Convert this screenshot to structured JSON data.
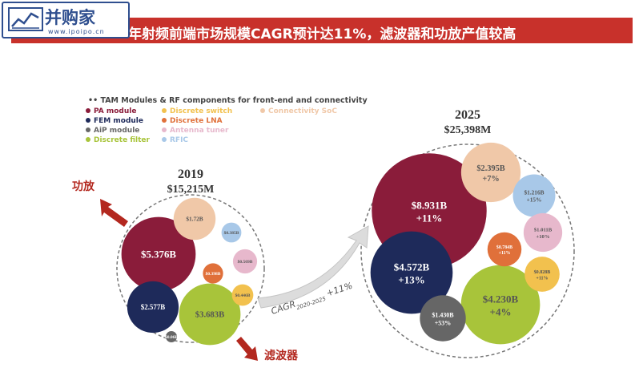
{
  "banner": {
    "title": "年射频前端市场规模CAGR预计达11%，滤波器和功放产值较高",
    "logo_name": "并购家",
    "logo_url": "www.ipoipo.cn",
    "colors": {
      "banner": "#c8312b",
      "logo": "#2f4f8f"
    }
  },
  "legend": {
    "heading": "TAM Modules & RF components for front-end and connectivity",
    "items": [
      {
        "label": "PA module",
        "color": "#8a1c3a"
      },
      {
        "label": "FEM module",
        "color": "#1e2a5a"
      },
      {
        "label": "AiP module",
        "color": "#666666"
      },
      {
        "label": "Discrete filter",
        "color": "#a8c43a"
      },
      {
        "label": "Discrete switch",
        "color": "#f2c14e"
      },
      {
        "label": "Discrete LNA",
        "color": "#e0703a"
      },
      {
        "label": "Antenna tuner",
        "color": "#e7b8cc"
      },
      {
        "label": "RFIC",
        "color": "#a8c8e8"
      },
      {
        "label": "Connectivity SoC",
        "color": "#f0c8a8"
      }
    ]
  },
  "chart_data": {
    "type": "bubble",
    "units": "USD",
    "growth_label": "CAGR",
    "growth_period": "2020-2025",
    "growth_value": "+11%",
    "groups": [
      {
        "year": "2019",
        "total": "$15,215M",
        "bubbles": [
          {
            "component": "PA module",
            "label": "$5.376B",
            "value_billion": 5.376,
            "color": "#8a1c3a"
          },
          {
            "component": "Discrete filter",
            "label": "$3.683B",
            "value_billion": 3.683,
            "color": "#a8c43a"
          },
          {
            "component": "FEM module",
            "label": "$2.577B",
            "value_billion": 2.577,
            "color": "#1e2a5a"
          },
          {
            "component": "Connectivity SoC",
            "label": "$1.72B",
            "value_billion": 1.72,
            "color": "#f0c8a8"
          },
          {
            "component": "Antenna tuner",
            "label": "$0.569B",
            "value_billion": 0.569,
            "color": "#e7b8cc"
          },
          {
            "component": "Discrete switch",
            "label": "$0.446B",
            "value_billion": 0.446,
            "color": "#f2c14e"
          },
          {
            "component": "Discrete LNA",
            "label": "$0.398B",
            "value_billion": 0.398,
            "color": "#e0703a"
          },
          {
            "component": "RFIC",
            "label": "$0.385B",
            "value_billion": 0.385,
            "color": "#a8c8e8"
          },
          {
            "component": "AiP module",
            "label": "$0.06B",
            "value_billion": 0.06,
            "color": "#666666"
          }
        ]
      },
      {
        "year": "2025",
        "total": "$25,398M",
        "bubbles": [
          {
            "component": "PA module",
            "label": "$8.931B",
            "growth": "+11%",
            "value_billion": 8.931,
            "color": "#8a1c3a"
          },
          {
            "component": "FEM module",
            "label": "$4.572B",
            "growth": "+13%",
            "value_billion": 4.572,
            "color": "#1e2a5a"
          },
          {
            "component": "Discrete filter",
            "label": "$4.230B",
            "growth": "+4%",
            "value_billion": 4.23,
            "color": "#a8c43a"
          },
          {
            "component": "Connectivity SoC",
            "label": "$2.395B",
            "growth": "+7%",
            "value_billion": 2.395,
            "color": "#f0c8a8"
          },
          {
            "component": "AiP module",
            "label": "$1.430B",
            "growth": "+53%",
            "value_billion": 1.43,
            "color": "#666666"
          },
          {
            "component": "RFIC",
            "label": "$1.216B",
            "growth": "+15%",
            "value_billion": 1.216,
            "color": "#a8c8e8"
          },
          {
            "component": "Antenna tuner",
            "label": "$1.011B",
            "growth": "+10%",
            "value_billion": 1.011,
            "color": "#e7b8cc"
          },
          {
            "component": "Discrete switch",
            "label": "$0.828B",
            "growth": "+11%",
            "value_billion": 0.828,
            "color": "#f2c14e"
          },
          {
            "component": "Discrete LNA",
            "label": "$0.784B",
            "growth": "+11%",
            "value_billion": 0.784,
            "color": "#e0703a"
          }
        ]
      }
    ]
  },
  "annotations": {
    "pa_label": "功放",
    "filter_label": "滤波器",
    "accent_color": "#b3281f"
  }
}
